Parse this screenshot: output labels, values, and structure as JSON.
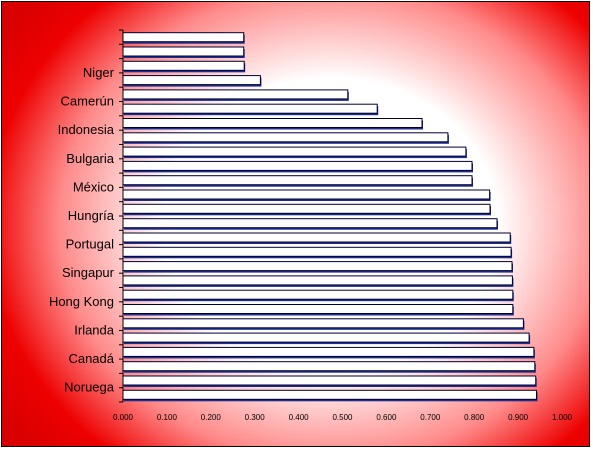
{
  "chart_data": {
    "type": "bar",
    "orientation": "horizontal",
    "title": "",
    "xlabel": "",
    "ylabel": "",
    "xlim": [
      0,
      1
    ],
    "x_ticks": [
      "0.000",
      "0.100",
      "0.200",
      "0.300",
      "0.400",
      "0.500",
      "0.600",
      "0.700",
      "0.800",
      "0.900",
      "1.000"
    ],
    "category_labels": [
      "Noruega",
      "Canadá",
      "Irlanda",
      "Hong Kong",
      "Singapur",
      "Portugal",
      "Hungría",
      "México",
      "Bulgaria",
      "Indonesia",
      "Camerún",
      "Niger"
    ],
    "values_bottom_to_top": [
      0.942,
      0.94,
      0.938,
      0.936,
      0.925,
      0.912,
      0.888,
      0.888,
      0.887,
      0.886,
      0.884,
      0.882,
      0.852,
      0.836,
      0.835,
      0.795,
      0.795,
      0.781,
      0.74,
      0.681,
      0.579,
      0.512,
      0.313,
      0.276,
      0.275,
      0.275
    ],
    "legend": "none",
    "grid": false,
    "colors": {
      "bar_fill": "#ffffff",
      "bar_outline": "#000033",
      "bar_shadow": "#1f2e8c",
      "background_edge": "#ee0000",
      "background_center": "#ffffff"
    }
  }
}
